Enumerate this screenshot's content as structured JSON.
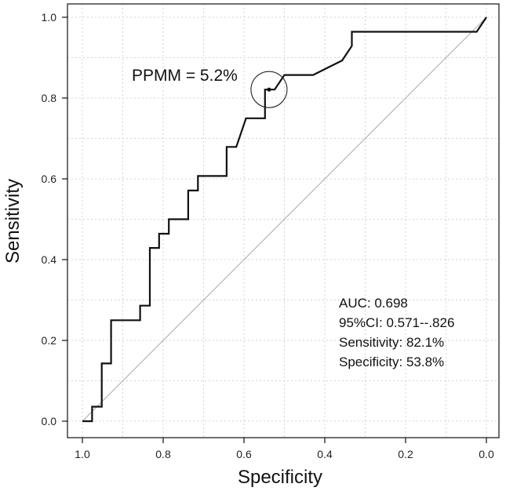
{
  "chart_data": {
    "type": "line",
    "title": "",
    "xlabel": "Specificity",
    "ylabel": "Sensitivity",
    "xlim": [
      1.0,
      0.0
    ],
    "ylim": [
      0.0,
      1.0
    ],
    "x_reversed": true,
    "x_ticks": [
      "1.0",
      "0.8",
      "0.6",
      "0.4",
      "0.2",
      "0.0"
    ],
    "y_ticks": [
      "0.0",
      "0.2",
      "0.4",
      "0.6",
      "0.8",
      "1.0"
    ],
    "grid": true,
    "series": [
      {
        "color": "#111111",
        "x": [
          1.0,
          0.976,
          0.976,
          0.952,
          0.952,
          0.929,
          0.929,
          0.857,
          0.857,
          0.833,
          0.833,
          0.81,
          0.81,
          0.786,
          0.786,
          0.738,
          0.738,
          0.714,
          0.714,
          0.69,
          0.643,
          0.643,
          0.619,
          0.595,
          0.548,
          0.548,
          0.524,
          0.5,
          0.429,
          0.357,
          0.333,
          0.333,
          0.024,
          0.0
        ],
        "y": [
          0.0,
          0.0,
          0.036,
          0.036,
          0.143,
          0.143,
          0.25,
          0.25,
          0.286,
          0.286,
          0.429,
          0.429,
          0.464,
          0.464,
          0.5,
          0.5,
          0.571,
          0.571,
          0.607,
          0.607,
          0.607,
          0.679,
          0.679,
          0.75,
          0.75,
          0.821,
          0.821,
          0.857,
          0.857,
          0.893,
          0.929,
          0.964,
          0.964,
          1.0
        ]
      },
      {
        "color": "#aaaaaa",
        "x": [
          1.0,
          0.0
        ],
        "y": [
          0.0,
          1.0
        ]
      }
    ],
    "highlight_point": {
      "x": 0.538,
      "y": 0.821
    },
    "annotations": {
      "cutoff_label": "PPMM = 5.2%",
      "stats": [
        "AUC: 0.698",
        "95%CI: 0.571--.826",
        "Sensitivity: 82.1%",
        "Specificity: 53.8%"
      ]
    }
  }
}
